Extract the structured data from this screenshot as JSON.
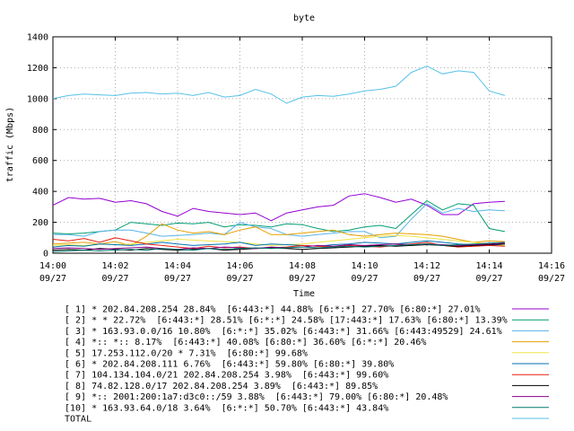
{
  "chart_data": {
    "type": "line",
    "title": "byte",
    "xlabel": "Time",
    "ylabel": "traffic (Mbps)",
    "ylim": [
      0,
      1400
    ],
    "yticks": [
      "0",
      "200",
      "400",
      "600",
      "800",
      "1000",
      "1200",
      "1400"
    ],
    "xlim": [
      "14:00 09/27",
      "14:16 09/27"
    ],
    "xticks": [
      {
        "time": "14:00",
        "date": "09/27"
      },
      {
        "time": "14:02",
        "date": "09/27"
      },
      {
        "time": "14:04",
        "date": "09/27"
      },
      {
        "time": "14:06",
        "date": "09/27"
      },
      {
        "time": "14:08",
        "date": "09/27"
      },
      {
        "time": "14:10",
        "date": "09/27"
      },
      {
        "time": "14:12",
        "date": "09/27"
      },
      {
        "time": "14:14",
        "date": "09/27"
      },
      {
        "time": "14:16",
        "date": "09/27"
      }
    ],
    "grid": true,
    "legend_position": "bottom",
    "x_minutes": [
      0,
      0.5,
      1,
      1.5,
      2,
      2.5,
      3,
      3.5,
      4,
      4.5,
      5,
      5.5,
      6,
      6.5,
      7,
      7.5,
      8,
      8.5,
      9,
      9.5,
      10,
      10.5,
      11,
      11.5,
      12,
      12.5,
      13,
      13.5,
      14,
      14.5
    ],
    "series": [
      {
        "name": "[ 1] * 202.84.208.254 28.84%  [6:443:*] 44.88% [6:*:*] 27.70% [6:80:*] 27.01%",
        "color": "#9400d3",
        "values": [
          310,
          360,
          350,
          355,
          330,
          340,
          320,
          270,
          240,
          290,
          270,
          260,
          250,
          260,
          210,
          260,
          280,
          300,
          310,
          370,
          385,
          360,
          330,
          350,
          310,
          250,
          250,
          320,
          330,
          335
        ]
      },
      {
        "name": "[ 2] * * 22.72%  [6:443:*] 28.51% [6:*:*] 24.58% [17:443:*] 17.63% [6:80:*] 13.39%",
        "color": "#009e73",
        "values": [
          130,
          125,
          130,
          140,
          150,
          200,
          190,
          180,
          195,
          190,
          200,
          170,
          185,
          180,
          170,
          190,
          185,
          160,
          140,
          150,
          170,
          180,
          160,
          250,
          340,
          280,
          320,
          310,
          160,
          140
        ]
      },
      {
        "name": "[ 3] * 163.93.0.0/16 10.80%  [6:*:*] 35.02% [6:443:*] 31.66% [6:443:49529] 24.61%",
        "color": "#56b4e9",
        "values": [
          120,
          120,
          110,
          140,
          150,
          150,
          130,
          110,
          115,
          120,
          130,
          120,
          200,
          170,
          160,
          120,
          110,
          120,
          130,
          140,
          140,
          100,
          110,
          220,
          320,
          260,
          290,
          270,
          280,
          275
        ]
      },
      {
        "name": "[ 4] *:: *:: 8.17%  [6:443:*] 40.08% [6:80:*] 36.60% [6:*:*] 20.46%",
        "color": "#e69f00",
        "values": [
          60,
          65,
          70,
          60,
          75,
          50,
          110,
          190,
          150,
          130,
          140,
          120,
          150,
          170,
          120,
          120,
          130,
          140,
          150,
          120,
          110,
          120,
          130,
          125,
          120,
          110,
          90,
          70,
          80,
          75
        ]
      },
      {
        "name": "[ 5] 17.253.112.0/20 * 7.31%  [6:80:*] 99.68%",
        "color": "#f0e442",
        "values": [
          50,
          55,
          50,
          60,
          55,
          60,
          70,
          80,
          90,
          85,
          80,
          75,
          70,
          60,
          50,
          55,
          60,
          70,
          80,
          90,
          100,
          110,
          115,
          110,
          100,
          90,
          80,
          70,
          60,
          50
        ]
      },
      {
        "name": "[ 6] * 202.84.208.111 6.76%  [6:443:*] 59.80% [6:80:*] 39.80%",
        "color": "#0072b2",
        "values": [
          40,
          50,
          45,
          60,
          55,
          50,
          60,
          70,
          60,
          50,
          55,
          60,
          70,
          50,
          60,
          55,
          50,
          45,
          55,
          60,
          70,
          65,
          60,
          70,
          80,
          70,
          60,
          55,
          50,
          60
        ]
      },
      {
        "name": "[ 7] 104.134.104.0/21 202.84.208.254 3.98%  [6:443:*] 99.60%",
        "color": "#e51e10",
        "values": [
          90,
          80,
          95,
          70,
          100,
          80,
          60,
          50,
          40,
          30,
          45,
          35,
          40,
          30,
          35,
          40,
          50,
          45,
          40,
          50,
          45,
          40,
          50,
          60,
          70,
          50,
          40,
          45,
          50,
          45
        ]
      },
      {
        "name": "[ 8] 74.82.128.0/17 202.84.208.254 3.89%  [6:443:*] 89.85%",
        "color": "#000000",
        "values": [
          20,
          25,
          20,
          30,
          25,
          20,
          30,
          25,
          20,
          25,
          30,
          20,
          25,
          30,
          35,
          30,
          25,
          30,
          35,
          40,
          45,
          50,
          45,
          50,
          55,
          50,
          45,
          50,
          55,
          60
        ]
      },
      {
        "name": "[ 9] *:: 2001:200:1a7:d3c0::/59 3.88%  [6:443:*] 79.00% [6:80:*] 20.48%",
        "color": "#8b008b",
        "values": [
          30,
          35,
          30,
          25,
          30,
          35,
          40,
          30,
          25,
          35,
          30,
          40,
          35,
          30,
          40,
          35,
          40,
          50,
          45,
          55,
          50,
          55,
          60,
          55,
          60,
          55,
          50,
          55,
          60,
          65
        ]
      },
      {
        "name": "[10] * 163.93.64.0/18 3.64%  [6:*:*] 50.70% [6:443:*] 43.84%",
        "color": "#00796b",
        "values": [
          10,
          15,
          20,
          15,
          20,
          25,
          20,
          30,
          25,
          20,
          30,
          25,
          30,
          35,
          30,
          35,
          40,
          35,
          40,
          45,
          40,
          45,
          50,
          55,
          60,
          50,
          55,
          60,
          65,
          70
        ]
      },
      {
        "name": "TOTAL",
        "color": "#56c1e8",
        "values": [
          1000,
          1020,
          1030,
          1025,
          1020,
          1035,
          1040,
          1030,
          1035,
          1020,
          1040,
          1010,
          1020,
          1060,
          1030,
          970,
          1010,
          1020,
          1015,
          1030,
          1050,
          1060,
          1080,
          1170,
          1210,
          1160,
          1180,
          1170,
          1050,
          1020
        ]
      }
    ]
  }
}
